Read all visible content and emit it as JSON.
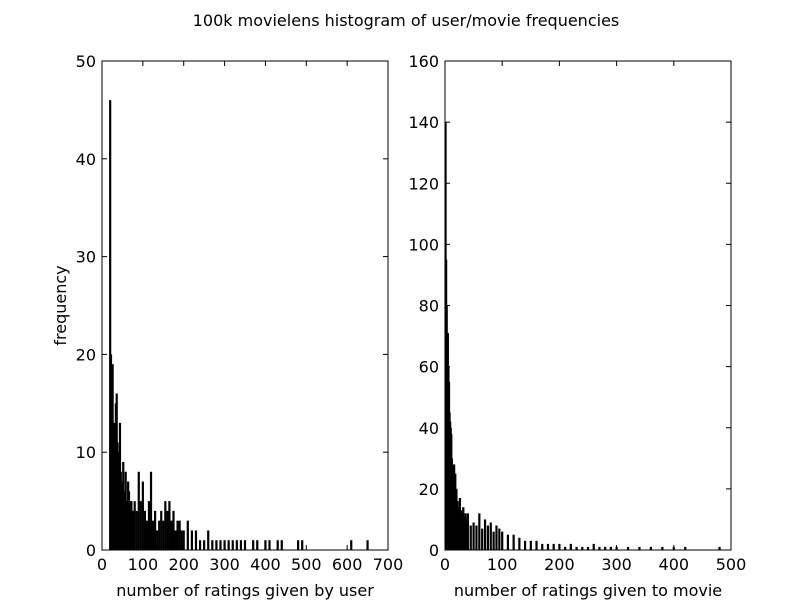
{
  "figure_title": "100k movielens histogram of user/movie frequencies",
  "chart_data": [
    {
      "type": "bar",
      "subtype": "histogram",
      "title": "",
      "xlabel": "number of ratings given by user",
      "ylabel": "frequency",
      "xlim": [
        0,
        700
      ],
      "ylim": [
        0,
        50
      ],
      "xticks": [
        0,
        100,
        200,
        300,
        400,
        500,
        600,
        700
      ],
      "yticks": [
        0,
        10,
        20,
        30,
        40,
        50
      ],
      "bar_color": "#000000",
      "x": [
        20,
        22,
        24,
        26,
        28,
        30,
        32,
        34,
        36,
        38,
        40,
        42,
        44,
        46,
        48,
        50,
        52,
        54,
        56,
        58,
        60,
        62,
        64,
        66,
        68,
        70,
        72,
        74,
        76,
        78,
        80,
        85,
        90,
        95,
        100,
        105,
        110,
        115,
        120,
        125,
        130,
        135,
        140,
        145,
        150,
        155,
        160,
        165,
        170,
        175,
        180,
        185,
        190,
        195,
        200,
        210,
        220,
        230,
        240,
        250,
        260,
        270,
        280,
        290,
        300,
        310,
        320,
        330,
        340,
        350,
        360,
        370,
        380,
        390,
        400,
        410,
        420,
        430,
        440,
        450,
        460,
        470,
        480,
        490,
        500,
        510,
        520,
        540,
        560,
        580,
        600,
        610,
        620,
        640,
        650
      ],
      "values": [
        46,
        20,
        17,
        19,
        12,
        13,
        10,
        15,
        16,
        11,
        10,
        9,
        13,
        8,
        7,
        6,
        9,
        5,
        6,
        8,
        5,
        4,
        7,
        6,
        5,
        4,
        5,
        3,
        4,
        3,
        5,
        4,
        8,
        5,
        7,
        4,
        3,
        5,
        8,
        3,
        4,
        2,
        3,
        4,
        3,
        5,
        4,
        5,
        3,
        4,
        2,
        3,
        3,
        2,
        2,
        3,
        2,
        2,
        1,
        1,
        2,
        1,
        1,
        1,
        1,
        1,
        1,
        1,
        1,
        1,
        0,
        1,
        1,
        0,
        1,
        1,
        0,
        1,
        1,
        0,
        0,
        0,
        1,
        1,
        0,
        0,
        0,
        0,
        0,
        0,
        0,
        1,
        0,
        0,
        1
      ]
    },
    {
      "type": "bar",
      "subtype": "histogram",
      "title": "",
      "xlabel": "number of ratings given to movie",
      "ylabel": "",
      "xlim": [
        0,
        500
      ],
      "ylim": [
        0,
        160
      ],
      "xticks": [
        0,
        100,
        200,
        300,
        400,
        500
      ],
      "yticks": [
        0,
        20,
        40,
        60,
        80,
        100,
        120,
        140,
        160
      ],
      "bar_color": "#000000",
      "x": [
        1,
        2,
        3,
        4,
        5,
        6,
        7,
        8,
        9,
        10,
        11,
        12,
        13,
        14,
        15,
        16,
        17,
        18,
        19,
        20,
        22,
        24,
        26,
        28,
        30,
        32,
        34,
        36,
        38,
        40,
        45,
        50,
        55,
        60,
        65,
        70,
        75,
        80,
        85,
        90,
        95,
        100,
        110,
        120,
        130,
        140,
        150,
        160,
        170,
        180,
        190,
        200,
        210,
        220,
        230,
        240,
        250,
        260,
        270,
        280,
        290,
        300,
        320,
        340,
        360,
        380,
        400,
        420,
        450,
        480
      ],
      "values": [
        140,
        95,
        80,
        70,
        71,
        60,
        55,
        45,
        42,
        40,
        38,
        30,
        28,
        25,
        22,
        28,
        20,
        25,
        18,
        20,
        16,
        14,
        17,
        13,
        12,
        14,
        11,
        12,
        10,
        12,
        8,
        9,
        8,
        12,
        7,
        10,
        8,
        9,
        6,
        8,
        7,
        6,
        5,
        5,
        4,
        3,
        3,
        3,
        2,
        2,
        2,
        2,
        1,
        2,
        1,
        1,
        1,
        2,
        1,
        1,
        1,
        1,
        1,
        1,
        1,
        1,
        1,
        1,
        0,
        1
      ]
    }
  ]
}
